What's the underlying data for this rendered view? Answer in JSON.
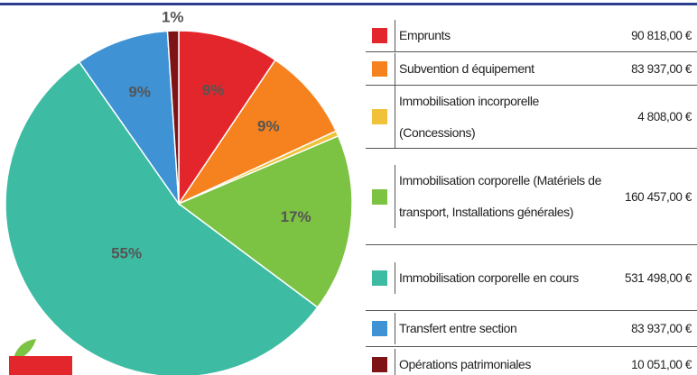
{
  "chart_data": {
    "type": "pie",
    "categories": [
      "Emprunts",
      "Subvention d équipement",
      "Immobilisation incorporelle (Concessions)",
      "Immobilisation corporelle (Matériels de transport, Installations générales)",
      "Immobilisation corporelle en cours",
      "Transfert entre section",
      "Opérations patrimoniales"
    ],
    "values": [
      9.41,
      8.69,
      0.5,
      16.62,
      55.05,
      8.69,
      1.04
    ],
    "value_labels": [
      "9%",
      "9%",
      null,
      "17%",
      "55%",
      "9%",
      "1%"
    ],
    "colors": [
      "#e3262b",
      "#f5821f",
      "#efc23a",
      "#7cc243",
      "#3dbca3",
      "#3f93d5",
      "#7d1416"
    ],
    "amount_labels": [
      "90 818,00 €",
      "83 937,00 €",
      "4 808,00 €",
      "160 457,00 €",
      "531 498,00 €",
      "83 937,00 €",
      "10 051,00 €"
    ]
  }
}
